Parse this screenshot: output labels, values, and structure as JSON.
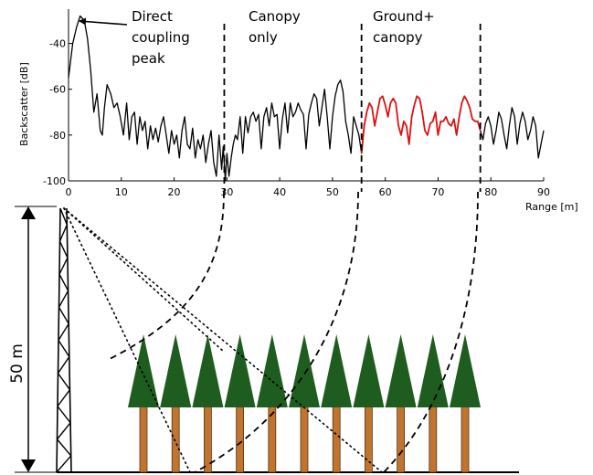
{
  "chart_data": {
    "type": "line",
    "xlabel": "Range [m]",
    "ylabel": "Backscatter [dB]",
    "xlim": [
      0,
      90
    ],
    "ylim": [
      -100,
      -25
    ],
    "x_ticks": [
      "0",
      "10",
      "20",
      "30",
      "40",
      "50",
      "60",
      "70",
      "80",
      "90"
    ],
    "y_ticks": [
      "-40",
      "-60",
      "-80",
      "-100"
    ],
    "grid": false,
    "series": [
      {
        "color": "#000000",
        "x": [
          0,
          0.8,
          1.5,
          2.2,
          3,
          3.6,
          4.2,
          4.8,
          5.4,
          6,
          6.4,
          6.8,
          7.3,
          8,
          8.6,
          9.2,
          9.8,
          10.4,
          11,
          11.5,
          12,
          12.5,
          13,
          13.5,
          14,
          14.5,
          15,
          15.5,
          16,
          16.5,
          17,
          17.5,
          18,
          18.5,
          19,
          19.5,
          20,
          20.5,
          21,
          21.5,
          22,
          22.5,
          23,
          23.5,
          24,
          24.5,
          25,
          25.5,
          26,
          26.5,
          27,
          27.5,
          28,
          28.5,
          29,
          29.3,
          29.7,
          30,
          30.4,
          30.8,
          31.2,
          31.6,
          32,
          32.5,
          33,
          33.5,
          34,
          34.5,
          35,
          35.5,
          36,
          36.5,
          37,
          37.5,
          38,
          38.5,
          39,
          39.5,
          40,
          40.5,
          41,
          41.5,
          42,
          42.5,
          43,
          43.5,
          44,
          44.5,
          45,
          45.5,
          46,
          46.5,
          47,
          47.5,
          48,
          48.5,
          49,
          49.5,
          50,
          50.5,
          51,
          51.5,
          52,
          52.5,
          53,
          53.5,
          54,
          54.5,
          55,
          55.5,
          56
        ],
        "y": [
          -55,
          -40,
          -33,
          -28,
          -30,
          -38,
          -52,
          -70,
          -62,
          -78,
          -80,
          -68,
          -58,
          -62,
          -68,
          -66,
          -72,
          -80,
          -66,
          -82,
          -72,
          -70,
          -84,
          -72,
          -78,
          -74,
          -86,
          -76,
          -82,
          -77,
          -83,
          -76,
          -72,
          -80,
          -88,
          -78,
          -84,
          -80,
          -90,
          -78,
          -72,
          -84,
          -86,
          -77,
          -90,
          -82,
          -86,
          -80,
          -92,
          -84,
          -78,
          -92,
          -98,
          -80,
          -95,
          -85,
          -100,
          -88,
          -98,
          -90,
          -84,
          -80,
          -82,
          -72,
          -88,
          -72,
          -79,
          -72,
          -70,
          -74,
          -71,
          -86,
          -72,
          -68,
          -76,
          -66,
          -72,
          -71,
          -86,
          -73,
          -66,
          -79,
          -66,
          -72,
          -70,
          -66,
          -69,
          -71,
          -86,
          -71,
          -66,
          -62,
          -64,
          -76,
          -68,
          -60,
          -72,
          -86,
          -72,
          -63,
          -58,
          -56,
          -61,
          -74,
          -80,
          -88,
          -72,
          -76,
          -80,
          -88,
          -75
        ]
      },
      {
        "color": "#dd1111",
        "x": [
          55.5,
          56,
          56.5,
          57,
          57.5,
          58,
          58.5,
          59,
          59.5,
          60,
          60.5,
          61,
          61.5,
          62,
          62.5,
          63,
          63.5,
          64,
          64.5,
          65,
          65.5,
          66,
          66.5,
          67,
          67.5,
          68,
          68.5,
          69,
          69.5,
          70,
          70.5,
          71,
          71.5,
          72,
          72.5,
          73,
          73.5,
          74,
          74.5,
          75,
          75.5,
          76,
          76.5,
          77,
          77.5,
          78
        ],
        "y": [
          -88,
          -76,
          -70,
          -66,
          -68,
          -76,
          -70,
          -64,
          -63,
          -67,
          -72,
          -66,
          -64,
          -66,
          -76,
          -80,
          -74,
          -76,
          -84,
          -72,
          -67,
          -63,
          -64,
          -70,
          -78,
          -80,
          -75,
          -74,
          -70,
          -80,
          -74,
          -74,
          -72,
          -75,
          -76,
          -73,
          -80,
          -72,
          -66,
          -63,
          -65,
          -68,
          -73,
          -74,
          -74,
          -78
        ]
      },
      {
        "color": "#000000",
        "x": [
          78,
          78.5,
          79,
          79.5,
          80,
          80.5,
          81,
          81.5,
          82,
          82.5,
          83,
          83.5,
          84,
          84.5,
          85,
          85.5,
          86,
          86.5,
          87,
          87.5,
          88,
          88.5,
          89,
          89.5,
          90
        ],
        "y": [
          -78,
          -82,
          -75,
          -72,
          -76,
          -84,
          -78,
          -70,
          -73,
          -80,
          -86,
          -76,
          -68,
          -72,
          -84,
          -75,
          -70,
          -74,
          -82,
          -78,
          -72,
          -76,
          -90,
          -84,
          -78
        ]
      }
    ],
    "annotations": {
      "direct_line1": "Direct",
      "direct_line2": "coupling",
      "direct_line3": "peak",
      "canopy_line1": "Canopy",
      "canopy_line2": "only",
      "ground_line1": "Ground+",
      "ground_line2": "canopy"
    },
    "markers_x": [
      29.5,
      55.5,
      78
    ]
  },
  "diagram": {
    "height_label": "50 m",
    "tree_count": 11,
    "colors": {
      "foliage": "#1f5c1f",
      "trunk": "#bf7430",
      "red_series": "#dd1111"
    }
  }
}
